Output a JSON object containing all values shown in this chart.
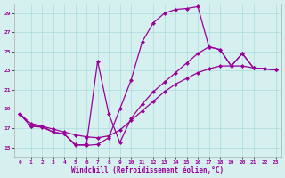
{
  "xlabel": "Windchill (Refroidissement éolien,°C)",
  "background_color": "#d6f0f0",
  "grid_color": "#aadddd",
  "line_color": "#990099",
  "xlim": [
    -0.5,
    23.5
  ],
  "ylim": [
    14,
    30
  ],
  "yticks": [
    15,
    17,
    19,
    21,
    23,
    25,
    27,
    29
  ],
  "xticks": [
    0,
    1,
    2,
    3,
    4,
    5,
    6,
    7,
    8,
    9,
    10,
    11,
    12,
    13,
    14,
    15,
    16,
    17,
    18,
    19,
    20,
    21,
    22,
    23
  ],
  "curve_top": {
    "x": [
      0,
      1,
      2,
      3,
      4,
      5,
      6,
      7,
      8,
      9,
      10,
      11,
      12,
      13,
      14,
      15,
      16,
      17,
      18,
      19,
      20,
      21,
      22,
      23
    ],
    "y": [
      18.5,
      17.2,
      17.2,
      16.6,
      16.4,
      15.3,
      15.2,
      15.3,
      16.0,
      19.0,
      22.0,
      26.0,
      28.0,
      29.0,
      29.4,
      29.5,
      29.7,
      25.5,
      25.2,
      23.5,
      24.8,
      23.3,
      23.2,
      23.1
    ]
  },
  "curve_spike": {
    "x": [
      0,
      1,
      2,
      3,
      4,
      5,
      6,
      7,
      8,
      9,
      10,
      11,
      12,
      13,
      14,
      15,
      16,
      17,
      18,
      19,
      20,
      21,
      22,
      23
    ],
    "y": [
      18.5,
      17.2,
      17.1,
      16.6,
      16.4,
      15.2,
      15.3,
      24.0,
      18.5,
      15.5,
      18.0,
      19.5,
      20.8,
      21.8,
      22.8,
      23.8,
      24.8,
      25.5,
      25.2,
      23.5,
      24.8,
      23.3,
      23.2,
      23.1
    ]
  },
  "curve_low": {
    "x": [
      0,
      1,
      2,
      3,
      4,
      5,
      6,
      7,
      8,
      9,
      10,
      11,
      12,
      13,
      14,
      15,
      16,
      17,
      18,
      19,
      20,
      21,
      22,
      23
    ],
    "y": [
      18.5,
      17.5,
      17.2,
      16.9,
      16.6,
      16.3,
      16.1,
      16.0,
      16.2,
      16.8,
      17.8,
      18.8,
      19.8,
      20.8,
      21.6,
      22.2,
      22.8,
      23.2,
      23.5,
      23.5,
      23.5,
      23.3,
      23.2,
      23.1
    ]
  }
}
